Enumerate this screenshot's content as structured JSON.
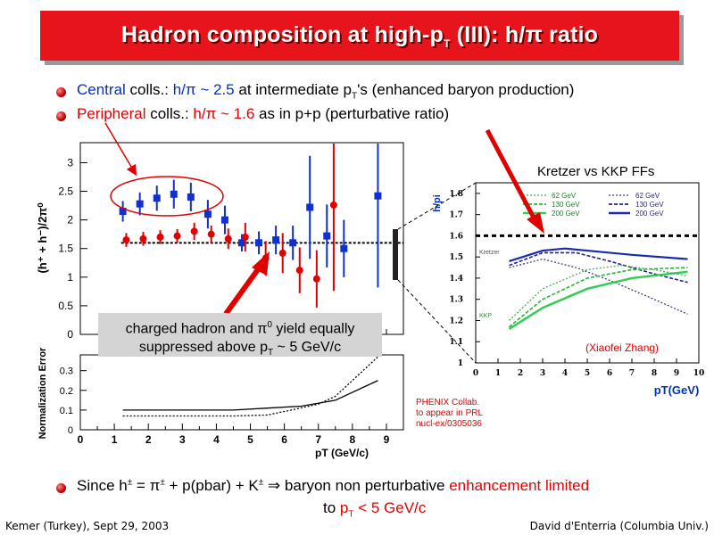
{
  "title": "Hadron composition at high-pT (III): h/π ratio",
  "bullets": {
    "b1": {
      "central": "Central",
      "rest1": " colls.: ",
      "ratio": "h/π ~ 2.5",
      "rest2": " at intermediate p",
      "sub": "T",
      "rest3": "'s (enhanced baryon production)"
    },
    "b2": {
      "peripheral": "Peripheral",
      "rest1": " colls.: ",
      "ratio": "h/π ~ 1.6",
      "rest2": " as in p+p (perturbative ratio)"
    },
    "b3": {
      "part1": "Since h",
      "sup1": "±",
      "part2": " = π",
      "sup2": "±",
      "part3": " + p(pbar) + K",
      "sup3": "±",
      "arrow": " ⇒ ",
      "part4": "baryon non perturbative ",
      "red1": "enhancement limited",
      "line2a": "to ",
      "red2": "p",
      "red2sub": "T",
      "red3": " < 5 GeV/c"
    }
  },
  "callout": {
    "line1a": "charged hadron and π",
    "line1sup": "0",
    "line1b": " yield equally",
    "line2a": "suppressed above p",
    "line2sub": "T",
    "line2b": " ~ 5 GeV/c"
  },
  "phenix_note": [
    "PHENIX Collab.",
    "to appear in PRL",
    "nucl-ex/0305036"
  ],
  "kretzer_label": "Kretzer vs KKP FFs",
  "xiaofei": "(Xiaofei Zhang)",
  "footer": {
    "left": "Kemer (Turkey), Sept 29, 2003",
    "right": "David d'Enterria (Columbia Univ.)"
  },
  "colors": {
    "title_bg": "#e8141b",
    "central": "#1030d0",
    "peripheral": "#e00000",
    "accent": "#e00000"
  },
  "chart_data": [
    {
      "type": "scatter",
      "ylabel": "(h⁺ + h⁻)/2π⁰",
      "xlim": [
        0,
        9.5
      ],
      "ylim": [
        0,
        3.35
      ],
      "yticks": [
        "0",
        "0.5",
        "1",
        "1.5",
        "2",
        "2.5",
        "3"
      ],
      "series": [
        {
          "name": "Central",
          "color": "#1030d0",
          "x": [
            1.25,
            1.75,
            2.25,
            2.75,
            3.25,
            3.75,
            4.25,
            4.75,
            5.25,
            5.75,
            6.25,
            6.75,
            7.25,
            7.75,
            8.75
          ],
          "y": [
            2.15,
            2.28,
            2.38,
            2.45,
            2.4,
            2.1,
            2.0,
            1.6,
            1.6,
            1.65,
            1.6,
            2.22,
            1.72,
            1.5,
            2.42
          ],
          "err": [
            0.18,
            0.2,
            0.22,
            0.25,
            0.25,
            0.25,
            0.25,
            0.15,
            0.2,
            0.25,
            0.3,
            0.9,
            0.55,
            0.5,
            1.6
          ]
        },
        {
          "name": "Peripheral",
          "color": "#e00000",
          "x": [
            1.35,
            1.85,
            2.35,
            2.85,
            3.35,
            3.85,
            4.35,
            4.85,
            5.45,
            5.95,
            6.45,
            6.95,
            7.45
          ],
          "y": [
            1.65,
            1.67,
            1.7,
            1.72,
            1.8,
            1.75,
            1.67,
            1.7,
            1.33,
            1.42,
            1.12,
            0.97,
            2.26
          ],
          "err": [
            0.12,
            0.12,
            0.12,
            0.12,
            0.15,
            0.15,
            0.18,
            0.25,
            0.3,
            0.35,
            0.4,
            0.5,
            1.5
          ]
        }
      ],
      "ref_line": 1.6
    },
    {
      "type": "line",
      "xlabel": "pT (GeV/c)",
      "ylabel": "Normalization Error",
      "xlim": [
        0,
        9.5
      ],
      "ylim": [
        0,
        0.38
      ],
      "xticks": [
        "0",
        "1",
        "2",
        "3",
        "4",
        "5",
        "6",
        "7",
        "8",
        "9"
      ],
      "yticks": [
        "0",
        "0.1",
        "0.2",
        "0.3"
      ],
      "series": [
        {
          "style": "solid",
          "x": [
            1.25,
            4.5,
            5.5,
            6.5,
            7.5,
            8.75
          ],
          "y": [
            0.1,
            0.1,
            0.11,
            0.12,
            0.15,
            0.25
          ]
        },
        {
          "style": "dotted",
          "x": [
            1.25,
            4.5,
            5.5,
            6.2,
            7.0,
            7.5,
            8.75
          ],
          "y": [
            0.07,
            0.07,
            0.075,
            0.1,
            0.13,
            0.17,
            0.37
          ]
        }
      ]
    },
    {
      "type": "line",
      "xlabel": "pT(GeV)",
      "ylabel": "h/pi",
      "xlim": [
        0,
        10
      ],
      "ylim": [
        1,
        1.85
      ],
      "xticks": [
        "0",
        "1",
        "2",
        "3",
        "4",
        "5",
        "6",
        "7",
        "8",
        "9",
        "10"
      ],
      "yticks": [
        "1",
        "1.1",
        "1.2",
        "1.3",
        "1.4",
        "1.5",
        "1.6",
        "1.7",
        "1.8"
      ],
      "legend_left": {
        "title": "",
        "entries": [
          "62 GeV",
          "130 GeV",
          "200 GeV"
        ]
      },
      "legend_right": {
        "title": "",
        "entries": [
          "62 GeV",
          "130 GeV",
          "200 GeV"
        ]
      },
      "curve_labels": [
        "Kretzer",
        "KKP"
      ],
      "ref_line": 1.6
    }
  ]
}
